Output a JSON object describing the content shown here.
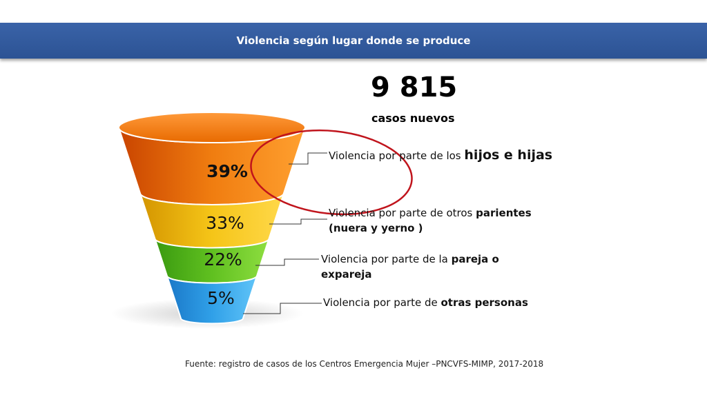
{
  "header": {
    "title": "Violencia según lugar donde se produce"
  },
  "total": {
    "value": "9 815",
    "label": "casos nuevos"
  },
  "items": [
    {
      "percent": "39%",
      "text": "Violencia por parte de los ",
      "bold": "hijos e hijas"
    },
    {
      "percent": "33%",
      "text": "Violencia por parte de otros ",
      "bold": "parientes (nuera y yerno )"
    },
    {
      "percent": "22%",
      "text": "Violencia por parte de la ",
      "bold": "pareja o expareja"
    },
    {
      "percent": "5%",
      "text": "Violencia por parte de ",
      "bold": "otras personas"
    }
  ],
  "source": "Fuente: registro de casos de los Centros Emergencia Mujer –PNCVFS-MIMP, 2017-2018"
}
